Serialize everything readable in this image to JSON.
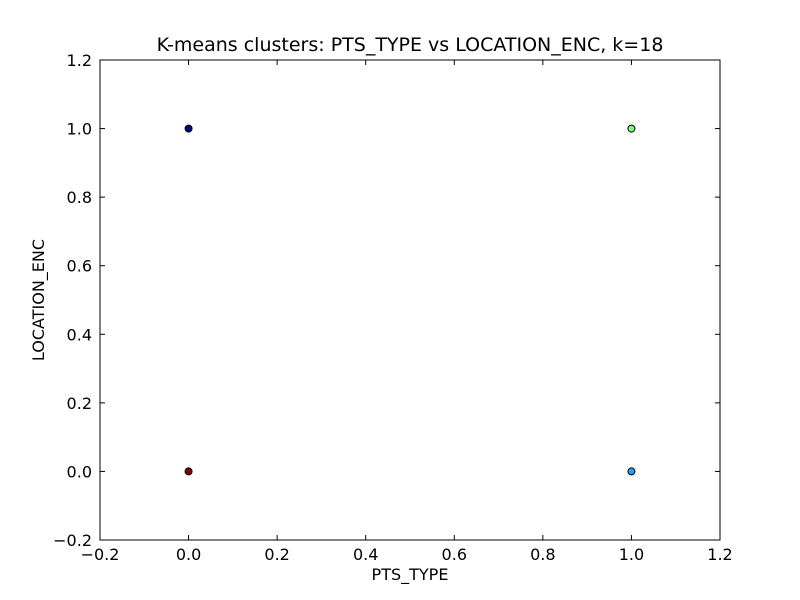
{
  "chart_data": {
    "type": "scatter",
    "title": "K-means clusters: PTS_TYPE vs LOCATION_ENC, k=18",
    "xlabel": "PTS_TYPE",
    "ylabel": "LOCATION_ENC",
    "xlim": [
      -0.2,
      1.2
    ],
    "ylim": [
      -0.2,
      1.2
    ],
    "xticks": [
      -0.2,
      0.0,
      0.2,
      0.4,
      0.6,
      0.8,
      1.0,
      1.2
    ],
    "yticks": [
      -0.2,
      0.0,
      0.2,
      0.4,
      0.6,
      0.8,
      1.0,
      1.2
    ],
    "xtick_labels": [
      "−0.2",
      "0.0",
      "0.2",
      "0.4",
      "0.6",
      "0.8",
      "1.0",
      "1.2"
    ],
    "ytick_labels": [
      "−0.2",
      "0.0",
      "0.2",
      "0.4",
      "0.6",
      "0.8",
      "1.0",
      "1.2"
    ],
    "grid": false,
    "points": [
      {
        "x": 0.0,
        "y": 1.0,
        "color": "#000080"
      },
      {
        "x": 0.0,
        "y": 0.0,
        "color": "#800000"
      },
      {
        "x": 1.0,
        "y": 1.0,
        "color": "#7cff79"
      },
      {
        "x": 1.0,
        "y": 0.0,
        "color": "#1ca6ff"
      }
    ]
  }
}
